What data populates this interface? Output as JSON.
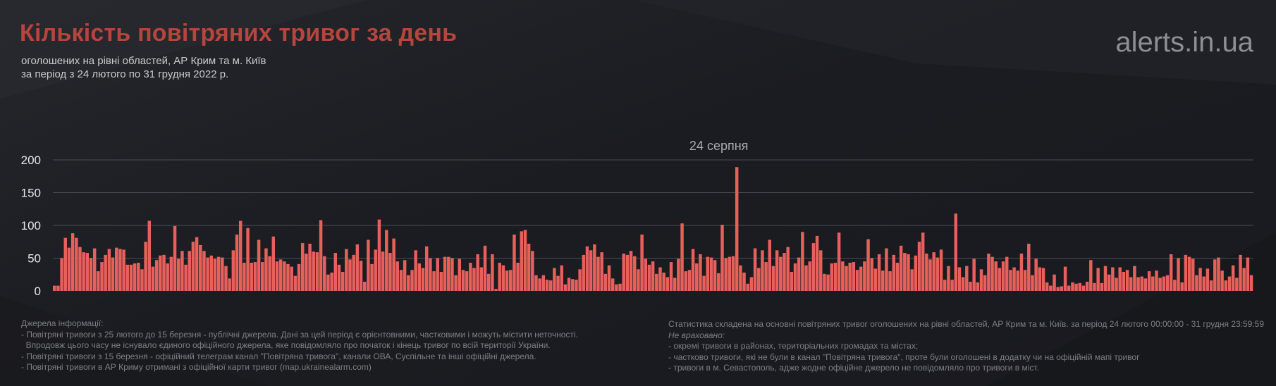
{
  "header": {
    "title": "Кількість повітряних тривог за день",
    "subtitle_line1": "оголошених на рівні областей, АР Крим та м. Київ",
    "subtitle_line2": "за період з 24 лютого по 31 грудня 2022 р.",
    "brand": "alerts.in.ua"
  },
  "chart_data": {
    "type": "bar",
    "title": "Кількість повітряних тривог за день",
    "xlabel": "",
    "ylabel": "",
    "ylim": [
      0,
      200
    ],
    "yticks": [
      0,
      50,
      100,
      150,
      200
    ],
    "grid": true,
    "annotation": {
      "label": "24 серпня",
      "index": 182
    },
    "bar_color": "#e8605c",
    "start_date": "2022-02-24",
    "end_date": "2022-12-31",
    "values": [
      8,
      8,
      50,
      81,
      66,
      88,
      81,
      67,
      59,
      58,
      50,
      65,
      30,
      44,
      55,
      64,
      51,
      66,
      64,
      63,
      40,
      40,
      42,
      43,
      33,
      75,
      107,
      37,
      47,
      54,
      55,
      42,
      52,
      99,
      49,
      61,
      40,
      61,
      75,
      82,
      70,
      61,
      51,
      54,
      49,
      52,
      51,
      38,
      19,
      62,
      86,
      107,
      43,
      96,
      43,
      44,
      78,
      44,
      65,
      53,
      83,
      45,
      48,
      45,
      41,
      37,
      23,
      41,
      73,
      57,
      72,
      60,
      59,
      108,
      53,
      25,
      28,
      58,
      40,
      29,
      64,
      48,
      55,
      71,
      46,
      14,
      78,
      41,
      63,
      109,
      60,
      93,
      58,
      80,
      45,
      32,
      47,
      24,
      32,
      62,
      42,
      35,
      68,
      50,
      30,
      50,
      29,
      52,
      52,
      50,
      24,
      49,
      32,
      30,
      43,
      35,
      56,
      36,
      69,
      26,
      56,
      3,
      43,
      39,
      31,
      32,
      86,
      43,
      91,
      93,
      72,
      61,
      24,
      19,
      24,
      17,
      16,
      35,
      23,
      39,
      10,
      20,
      18,
      17,
      33,
      55,
      68,
      62,
      71,
      52,
      59,
      26,
      39,
      19,
      10,
      11,
      57,
      55,
      61,
      53,
      33,
      86,
      49,
      40,
      45,
      26,
      36,
      28,
      21,
      44,
      20,
      49,
      103,
      30,
      32,
      64,
      42,
      56,
      23,
      52,
      51,
      47,
      27,
      101,
      50,
      52,
      53,
      189,
      39,
      28,
      11,
      21,
      65,
      35,
      62,
      44,
      78,
      38,
      62,
      52,
      58,
      67,
      29,
      42,
      51,
      90,
      39,
      45,
      73,
      84,
      62,
      26,
      25,
      42,
      43,
      89,
      45,
      38,
      43,
      44,
      32,
      37,
      45,
      79,
      50,
      34,
      56,
      31,
      65,
      30,
      55,
      43,
      69,
      58,
      56,
      33,
      54,
      75,
      89,
      57,
      48,
      59,
      51,
      63,
      17,
      38,
      17,
      118,
      36,
      21,
      38,
      14,
      49,
      13,
      33,
      24,
      57,
      52,
      45,
      35,
      45,
      52,
      32,
      36,
      31,
      57,
      32,
      72,
      24,
      49,
      36,
      35,
      13,
      8,
      25,
      6,
      7,
      37,
      8,
      13,
      11,
      12,
      8,
      14,
      47,
      12,
      35,
      12,
      38,
      25,
      36,
      20,
      36,
      29,
      32,
      21,
      38,
      21,
      22,
      19,
      30,
      22,
      31,
      20,
      22,
      24,
      56,
      17,
      50,
      13,
      55,
      52,
      49,
      24,
      35,
      22,
      34,
      16,
      48,
      51,
      31,
      16,
      22,
      39,
      20,
      55,
      35,
      51,
      24
    ]
  },
  "footer_left": {
    "heading": "Джерела інформації:",
    "line1": "- Повітряні тривоги з 25 лютого до 15 березня - публічні джерела. Дані за цей період є орієнтовними, частковими і можуть містити неточності.",
    "line2": "  Впродовж цього часу не існувало єдиного офіційного джерела, яке повідомляло про початок і кінець тривог по всій території України.",
    "line3": "- Повітряні тривоги з 15 березня - офіційний телеграм канал \"Повітряна тривога\", канали ОВА, Суспільне та інші офіційні джерела.",
    "line4": "- Повітряні тривоги в АР Криму отримані з офіційної карти тривог (map.ukrainealarm.com)"
  },
  "footer_right": {
    "line1": "Статистика складена на основні повітряних тривог оголошених на рівні областей, АР Крим та м. Київ. за період 24 лютого 00:00:00 - 31 грудня 23:59:59",
    "line2": "Не враховано:",
    "line3": "- окремі тривоги в районах, територіальних громадах та містах;",
    "line4": "- частково тривоги, які не були в канал \"Повітряна тривога\", проте були оголошені в додатку чи на офіційній мапі тривог",
    "line5": "- тривоги в м. Севастополь, адже жодне офіційне джерело не повідомляло про тривоги в міст."
  }
}
